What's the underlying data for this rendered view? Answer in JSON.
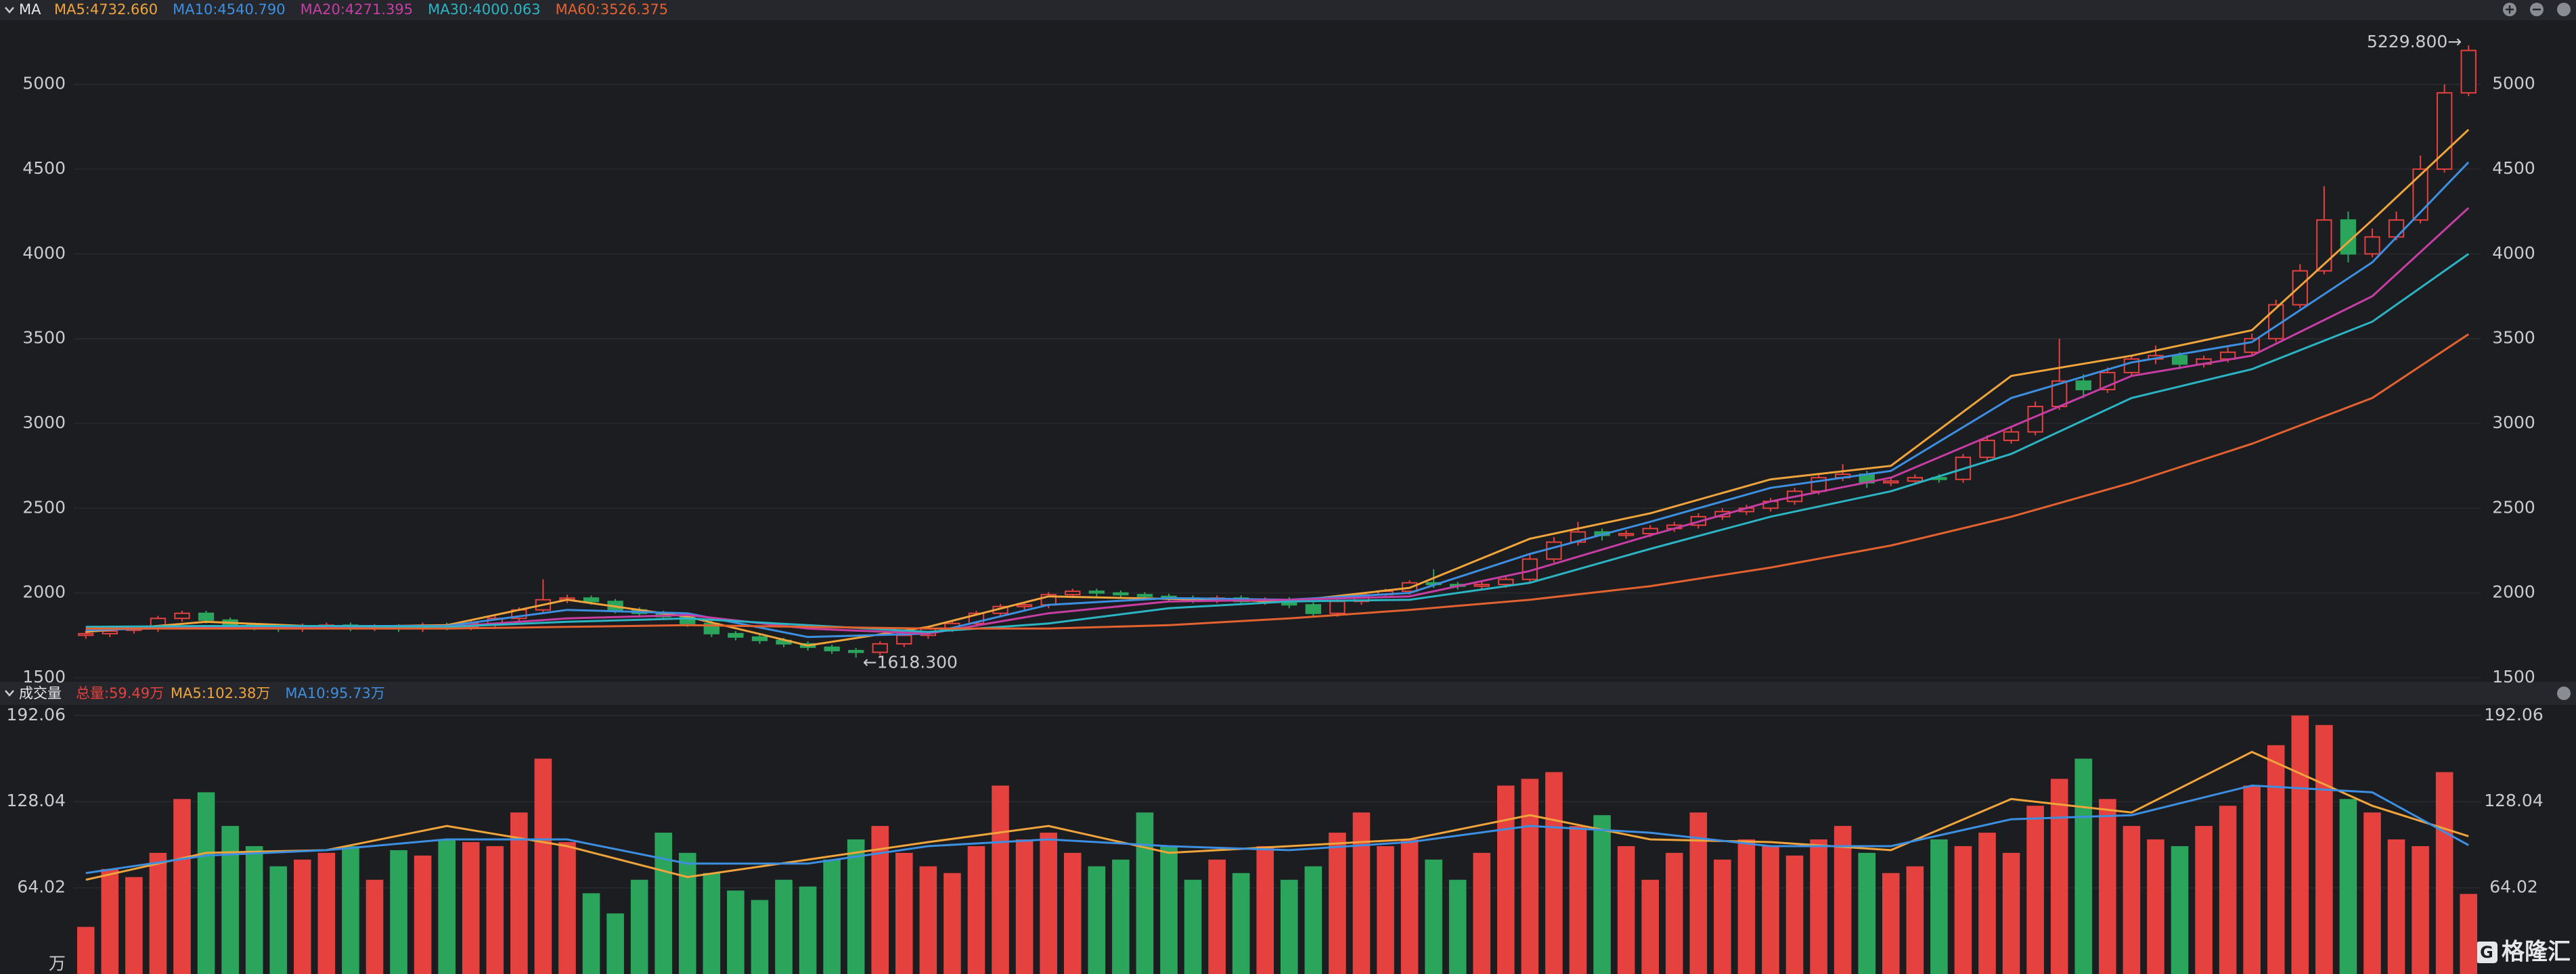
{
  "chart_data": [
    {
      "type": "candlestick",
      "title": "MA",
      "open": [
        1750,
        1760,
        1780,
        1790,
        1850,
        1880,
        1840,
        1810,
        1800,
        1790,
        1805,
        1810,
        1795,
        1800,
        1790,
        1810,
        1800,
        1820,
        1850,
        1900,
        1960,
        1970,
        1950,
        1900,
        1880,
        1860,
        1820,
        1760,
        1740,
        1720,
        1700,
        1680,
        1660,
        1650,
        1700,
        1750,
        1790,
        1820,
        1880,
        1920,
        1930,
        1990,
        2010,
        2000,
        1990,
        1980,
        1970,
        1960,
        1970,
        1950,
        1960,
        1930,
        1880,
        1950,
        1990,
        2010,
        2060,
        2050,
        2040,
        2050,
        2080,
        2200,
        2300,
        2360,
        2340,
        2350,
        2380,
        2400,
        2450,
        2480,
        2500,
        2540,
        2600,
        2680,
        2700,
        2650,
        2660,
        2680,
        2670,
        2800,
        2900,
        2950,
        3100,
        3250,
        3200,
        3300,
        3380,
        3400,
        3350,
        3380,
        3420,
        3500,
        3700,
        3900,
        4200,
        4000,
        4100,
        4200,
        4500,
        4950
      ],
      "high": [
        1780,
        1795,
        1805,
        1865,
        1895,
        1895,
        1855,
        1825,
        1815,
        1820,
        1825,
        1825,
        1815,
        1815,
        1825,
        1825,
        1835,
        1865,
        1915,
        2080,
        1990,
        1985,
        1965,
        1915,
        1895,
        1875,
        1835,
        1775,
        1755,
        1735,
        1715,
        1695,
        1675,
        1715,
        1765,
        1805,
        1835,
        1895,
        1935,
        1945,
        2005,
        2025,
        2025,
        2015,
        2005,
        1995,
        1985,
        1985,
        1985,
        1975,
        1975,
        1945,
        1965,
        2005,
        2025,
        2075,
        2140,
        2065,
        2065,
        2095,
        2230,
        2330,
        2420,
        2380,
        2370,
        2400,
        2420,
        2470,
        2500,
        2520,
        2560,
        2620,
        2700,
        2760,
        2720,
        2680,
        2700,
        2700,
        2820,
        2930,
        2980,
        3130,
        3500,
        3290,
        3330,
        3400,
        3460,
        3420,
        3400,
        3450,
        3530,
        3730,
        3940,
        4400,
        4250,
        4150,
        4250,
        4580,
        5000,
        5229.8
      ],
      "low": [
        1730,
        1740,
        1760,
        1770,
        1830,
        1820,
        1790,
        1780,
        1770,
        1770,
        1785,
        1775,
        1775,
        1770,
        1770,
        1780,
        1780,
        1800,
        1830,
        1880,
        1940,
        1930,
        1880,
        1860,
        1840,
        1800,
        1740,
        1720,
        1700,
        1680,
        1660,
        1640,
        1618.3,
        1630,
        1680,
        1730,
        1770,
        1800,
        1860,
        1900,
        1910,
        1970,
        1980,
        1970,
        1960,
        1950,
        1940,
        1940,
        1930,
        1930,
        1910,
        1860,
        1860,
        1930,
        1970,
        1990,
        2030,
        2020,
        2020,
        2030,
        2060,
        2180,
        2280,
        2310,
        2320,
        2330,
        2360,
        2380,
        2430,
        2460,
        2480,
        2520,
        2580,
        2660,
        2620,
        2630,
        2640,
        2650,
        2650,
        2780,
        2880,
        2930,
        3080,
        3150,
        3180,
        3280,
        3350,
        3320,
        3330,
        3360,
        3400,
        3480,
        3680,
        3880,
        3950,
        3980,
        4080,
        4180,
        4480,
        4930
      ],
      "close": [
        1760,
        1775,
        1790,
        1850,
        1880,
        1840,
        1810,
        1800,
        1790,
        1805,
        1810,
        1795,
        1800,
        1790,
        1810,
        1800,
        1820,
        1850,
        1900,
        1960,
        1970,
        1950,
        1900,
        1880,
        1860,
        1820,
        1760,
        1740,
        1720,
        1700,
        1680,
        1660,
        1650,
        1700,
        1750,
        1790,
        1820,
        1880,
        1920,
        1930,
        1990,
        2010,
        2000,
        1990,
        1980,
        1970,
        1960,
        1970,
        1950,
        1960,
        1930,
        1880,
        1950,
        1990,
        2010,
        2060,
        2050,
        2040,
        2050,
        2080,
        2200,
        2300,
        2360,
        2340,
        2350,
        2380,
        2400,
        2450,
        2480,
        2500,
        2540,
        2600,
        2680,
        2700,
        2650,
        2660,
        2680,
        2670,
        2800,
        2900,
        2950,
        3100,
        3250,
        3200,
        3300,
        3380,
        3400,
        3350,
        3380,
        3420,
        3500,
        3700,
        3900,
        4200,
        4000,
        4100,
        4200,
        4500,
        4950,
        5200
      ],
      "up_color": "#e5413f",
      "down_color": "#2ba55b",
      "ylim": [
        1480,
        5370
      ],
      "yticks": [
        1500,
        2000,
        2500,
        3000,
        3500,
        4000,
        4500,
        5000
      ],
      "line_x": [
        0,
        5,
        10,
        15,
        20,
        25,
        30,
        35,
        40,
        45,
        50,
        55,
        60,
        65,
        70,
        75,
        80,
        85,
        90,
        95,
        99
      ],
      "series": [
        {
          "name": "MA5:4732.660",
          "color": "#f0a43c",
          "values": [
            1770,
            1830,
            1800,
            1810,
            1960,
            1860,
            1690,
            1800,
            1980,
            1965,
            1950,
            2030,
            2320,
            2470,
            2670,
            2750,
            3280,
            3400,
            3550,
            4200,
            4732.66
          ]
        },
        {
          "name": "MA10:4540.790",
          "color": "#3d8fe2",
          "values": [
            1780,
            1800,
            1805,
            1805,
            1900,
            1880,
            1740,
            1760,
            1930,
            1970,
            1960,
            2000,
            2230,
            2420,
            2620,
            2720,
            3150,
            3360,
            3480,
            3950,
            4540.79
          ]
        },
        {
          "name": "MA20:4271.395",
          "color": "#c63ea3",
          "values": [
            1790,
            1795,
            1800,
            1800,
            1850,
            1870,
            1790,
            1760,
            1880,
            1950,
            1960,
            1980,
            2130,
            2340,
            2540,
            2680,
            2980,
            3280,
            3400,
            3750,
            4271.395
          ]
        },
        {
          "name": "MA30:4000.063",
          "color": "#2bb5c4",
          "values": [
            1800,
            1805,
            1805,
            1800,
            1830,
            1850,
            1810,
            1770,
            1820,
            1910,
            1950,
            1960,
            2060,
            2260,
            2450,
            2600,
            2820,
            3150,
            3320,
            3600,
            4000.063
          ]
        },
        {
          "name": "MA60:3526.375",
          "color": "#e3622f",
          "values": [
            1790,
            1790,
            1790,
            1790,
            1800,
            1810,
            1800,
            1790,
            1790,
            1810,
            1850,
            1900,
            1960,
            2040,
            2150,
            2280,
            2450,
            2650,
            2880,
            3150,
            3526.375
          ]
        }
      ],
      "annotations": [
        {
          "text": "5229.800→",
          "index": 99,
          "field": "high"
        },
        {
          "text": "←1618.300",
          "index": 32,
          "field": "low"
        }
      ]
    },
    {
      "type": "volume",
      "title": "成交量",
      "unit": "万",
      "total_label": "总量:59.49万",
      "values": [
        35,
        78,
        72,
        90,
        130,
        135,
        110,
        95,
        80,
        85,
        90,
        95,
        70,
        92,
        88,
        100,
        98,
        95,
        120,
        160,
        98,
        60,
        45,
        70,
        105,
        90,
        75,
        62,
        55,
        70,
        65,
        85,
        100,
        110,
        90,
        80,
        75,
        95,
        140,
        100,
        105,
        90,
        80,
        85,
        120,
        95,
        70,
        85,
        75,
        95,
        70,
        80,
        105,
        120,
        95,
        100,
        85,
        70,
        90,
        140,
        145,
        150,
        110,
        118,
        95,
        70,
        90,
        120,
        85,
        100,
        95,
        88,
        100,
        110,
        90,
        75,
        80,
        100,
        95,
        105,
        90,
        125,
        145,
        160,
        130,
        110,
        100,
        95,
        110,
        125,
        140,
        170,
        192.06,
        185,
        130,
        120,
        100,
        95,
        150,
        59.49
      ],
      "ylim": [
        0,
        199
      ],
      "yticks": [
        64.02,
        128.04,
        192.06
      ],
      "line_x": [
        0,
        5,
        10,
        15,
        20,
        25,
        30,
        35,
        40,
        45,
        50,
        55,
        60,
        65,
        70,
        75,
        80,
        85,
        90,
        95,
        99
      ],
      "series": [
        {
          "name": "MA5:102.38万",
          "color": "#f0a43c",
          "values": [
            70,
            90,
            92,
            110,
            95,
            72,
            85,
            98,
            110,
            90,
            95,
            100,
            118,
            100,
            98,
            92,
            130,
            120,
            165,
            125,
            102.38
          ]
        },
        {
          "name": "MA10:95.73万",
          "color": "#3d8fe2",
          "values": [
            75,
            88,
            92,
            100,
            100,
            82,
            82,
            95,
            100,
            95,
            92,
            98,
            110,
            105,
            95,
            95,
            115,
            118,
            140,
            135,
            95.73
          ]
        }
      ]
    }
  ],
  "logo": "格隆汇"
}
